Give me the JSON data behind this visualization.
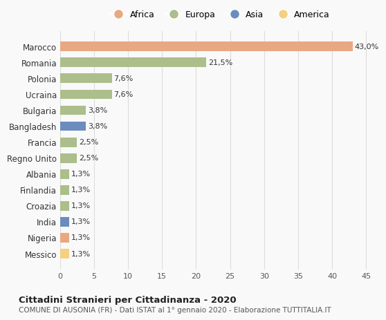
{
  "countries": [
    "Marocco",
    "Romania",
    "Polonia",
    "Ucraina",
    "Bulgaria",
    "Bangladesh",
    "Francia",
    "Regno Unito",
    "Albania",
    "Finlandia",
    "Croazia",
    "India",
    "Nigeria",
    "Messico"
  ],
  "values": [
    43.0,
    21.5,
    7.6,
    7.6,
    3.8,
    3.8,
    2.5,
    2.5,
    1.3,
    1.3,
    1.3,
    1.3,
    1.3,
    1.3
  ],
  "labels": [
    "43,0%",
    "21,5%",
    "7,6%",
    "7,6%",
    "3,8%",
    "3,8%",
    "2,5%",
    "2,5%",
    "1,3%",
    "1,3%",
    "1,3%",
    "1,3%",
    "1,3%",
    "1,3%"
  ],
  "colors": [
    "#E8A882",
    "#ABBE8B",
    "#ABBE8B",
    "#ABBE8B",
    "#ABBE8B",
    "#6B8DBE",
    "#ABBE8B",
    "#ABBE8B",
    "#ABBE8B",
    "#ABBE8B",
    "#ABBE8B",
    "#6B8DBE",
    "#E8A882",
    "#F5D080"
  ],
  "legend_labels": [
    "Africa",
    "Europa",
    "Asia",
    "America"
  ],
  "legend_colors": [
    "#E8A882",
    "#ABBE8B",
    "#6B8DBE",
    "#F5D080"
  ],
  "title": "Cittadini Stranieri per Cittadinanza - 2020",
  "subtitle": "COMUNE DI AUSONIA (FR) - Dati ISTAT al 1° gennaio 2020 - Elaborazione TUTTITALIA.IT",
  "xlim": [
    0,
    47
  ],
  "xticks": [
    0,
    5,
    10,
    15,
    20,
    25,
    30,
    35,
    40,
    45
  ],
  "background_color": "#f9f9f9",
  "grid_color": "#dddddd"
}
